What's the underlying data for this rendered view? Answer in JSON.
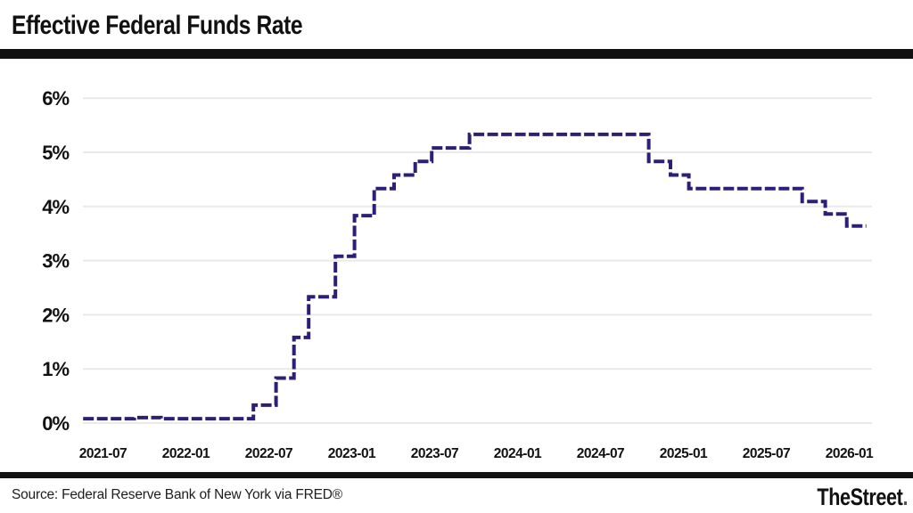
{
  "header": {
    "title": "Effective Federal Funds Rate"
  },
  "footer": {
    "source": "Source: Federal Reserve Bank of New York via FRED®",
    "brand": "TheStreet",
    "brand_dot": "."
  },
  "colors": {
    "line": "#2b2076",
    "grid": "#e9e9e9",
    "text": "#111111",
    "rule": "#111111",
    "background": "#ffffff"
  },
  "chart_data": {
    "type": "line",
    "subtype": "step-after",
    "line_style": "dashed",
    "title": "Effective Federal Funds Rate",
    "xlabel": "",
    "ylabel": "",
    "grid": "horizontal-only",
    "legend": "none",
    "ylim": [
      0,
      6
    ],
    "y_ticks": [
      "0%",
      "1%",
      "2%",
      "3%",
      "4%",
      "5%",
      "6%"
    ],
    "x_ticks": [
      "2021-07",
      "2022-01",
      "2022-07",
      "2023-01",
      "2023-07",
      "2024-01",
      "2024-07",
      "2025-01",
      "2025-07",
      "2026-01"
    ],
    "series_name": "Effective Federal Funds Rate (%)",
    "start": {
      "date": "2021-05-18",
      "rate": 0.08
    },
    "end_date": "2026-02-08",
    "step_points": [
      {
        "date": "2021-09-09",
        "rate": 0.1
      },
      {
        "date": "2021-11-07",
        "rate": 0.08
      },
      {
        "date": "2022-05-28",
        "rate": 0.33
      },
      {
        "date": "2022-07-17",
        "rate": 0.83
      },
      {
        "date": "2022-08-26",
        "rate": 1.58
      },
      {
        "date": "2022-09-28",
        "rate": 2.33
      },
      {
        "date": "2022-11-26",
        "rate": 3.08
      },
      {
        "date": "2023-01-07",
        "rate": 3.83
      },
      {
        "date": "2023-02-20",
        "rate": 4.33
      },
      {
        "date": "2023-04-03",
        "rate": 4.58
      },
      {
        "date": "2023-05-19",
        "rate": 4.83
      },
      {
        "date": "2023-06-25",
        "rate": 5.08
      },
      {
        "date": "2023-09-17",
        "rate": 5.33
      },
      {
        "date": "2024-10-16",
        "rate": 4.83
      },
      {
        "date": "2024-12-03",
        "rate": 4.58
      },
      {
        "date": "2025-01-13",
        "rate": 4.33
      },
      {
        "date": "2025-09-19",
        "rate": 4.09
      },
      {
        "date": "2025-11-09",
        "rate": 3.86
      },
      {
        "date": "2025-12-26",
        "rate": 3.64
      }
    ]
  }
}
